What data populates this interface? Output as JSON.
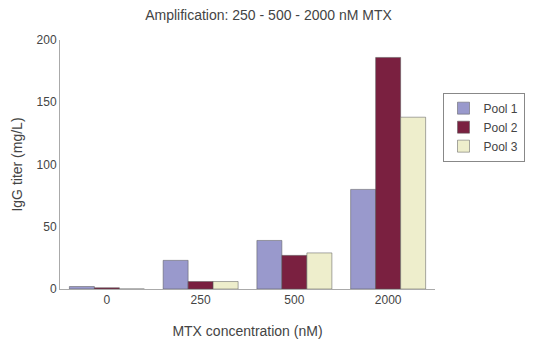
{
  "chart_data": {
    "type": "bar",
    "title": "Amplification: 250 - 500 - 2000 nM MTX",
    "xlabel": "MTX concentration (nM)",
    "ylabel": "IgG titer (mg/L)",
    "categories": [
      "0",
      "250",
      "500",
      "2000"
    ],
    "series": [
      {
        "name": "Pool 1",
        "color": "#9999cc",
        "values": [
          2,
          23,
          39,
          80
        ]
      },
      {
        "name": "Pool 2",
        "color": "#7a2040",
        "values": [
          1,
          6,
          27,
          186
        ]
      },
      {
        "name": "Pool 3",
        "color": "#eeeecc",
        "values": [
          0,
          6,
          29,
          138
        ]
      }
    ],
    "ylim": [
      0,
      200
    ],
    "yticks": [
      0,
      50,
      100,
      150,
      200
    ],
    "grid": false,
    "legend": "right"
  }
}
